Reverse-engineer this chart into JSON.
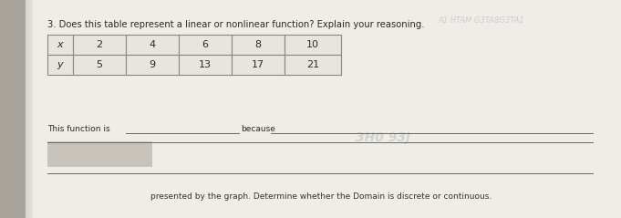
{
  "question": "3. Does this table represent a linear or nonlinear function? Explain your reasoning.",
  "table": {
    "headers": [
      "x",
      "2",
      "4",
      "6",
      "8",
      "10"
    ],
    "row2": [
      "y",
      "5",
      "9",
      "13",
      "17",
      "21"
    ]
  },
  "bottom_text": "presented by the graph. Determine whether the Domain is discrete or continuous.",
  "bg_color_left": "#b0aca4",
  "bg_color_right": "#ccc9c1",
  "paper_color": "#f0ede6",
  "table_bg": "#e8e5de",
  "table_line_color": "#888888",
  "text_color": "#2a2a2a",
  "watermark_text": "A1 HTAM G3TA8G3TA1",
  "watermark_color": "#c0bfcc",
  "watermark2_text": "3H0 93J",
  "watermark2_color": "#b8c0b8",
  "line_color": "#666666",
  "gray_box_color": "#c8c4bc",
  "bottom_text_color": "#333333"
}
